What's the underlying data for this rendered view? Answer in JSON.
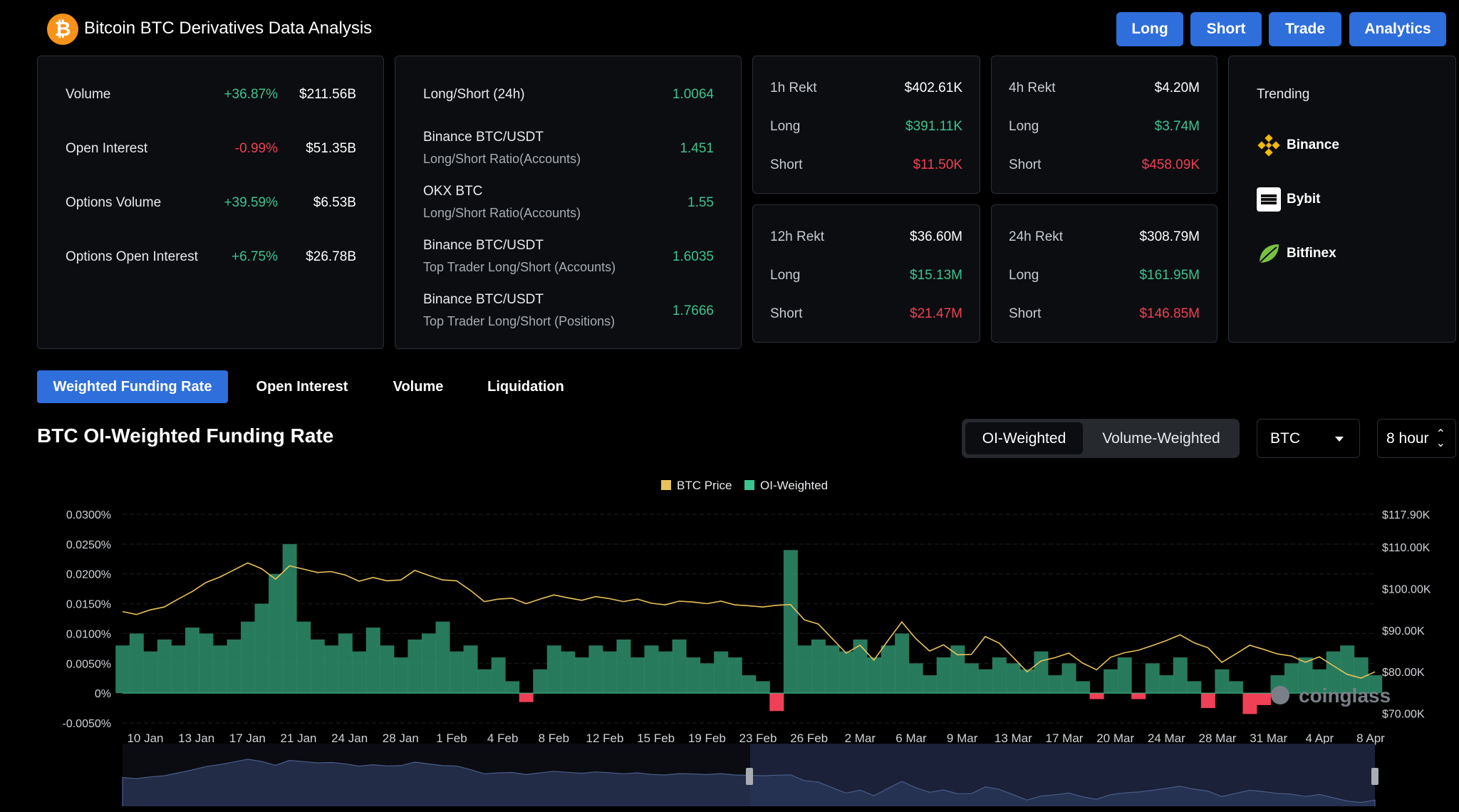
{
  "header": {
    "title": "Bitcoin BTC Derivatives Data Analysis",
    "logo_glyph": "₿",
    "buttons": [
      "Long",
      "Short",
      "Trade",
      "Analytics"
    ]
  },
  "market": [
    {
      "label": "Volume",
      "change": "+36.87%",
      "value": "$211.56B"
    },
    {
      "label": "Open Interest",
      "change": "-0.99%",
      "value": "$51.35B"
    },
    {
      "label": "Options Volume",
      "change": "+39.59%",
      "value": "$6.53B"
    },
    {
      "label": "Options Open Interest",
      "change": "+6.75%",
      "value": "$26.78B"
    }
  ],
  "ratios": [
    {
      "label": "Long/Short (24h)",
      "sub": "",
      "value": "1.0064"
    },
    {
      "label": "Binance BTC/USDT",
      "sub": "Long/Short Ratio(Accounts)",
      "value": "1.451"
    },
    {
      "label": "OKX BTC",
      "sub": "Long/Short Ratio(Accounts)",
      "value": "1.55"
    },
    {
      "label": "Binance BTC/USDT",
      "sub": "Top Trader Long/Short (Accounts)",
      "value": "1.6035"
    },
    {
      "label": "Binance BTC/USDT",
      "sub": "Top Trader Long/Short (Positions)",
      "value": "1.7666"
    }
  ],
  "rekt": [
    {
      "title": "1h Rekt",
      "total": "$402.61K",
      "long_label": "Long",
      "long": "$391.11K",
      "short_label": "Short",
      "short": "$11.50K"
    },
    {
      "title": "4h Rekt",
      "total": "$4.20M",
      "long_label": "Long",
      "long": "$3.74M",
      "short_label": "Short",
      "short": "$458.09K"
    },
    {
      "title": "12h Rekt",
      "total": "$36.60M",
      "long_label": "Long",
      "long": "$15.13M",
      "short_label": "Short",
      "short": "$21.47M"
    },
    {
      "title": "24h Rekt",
      "total": "$308.79M",
      "long_label": "Long",
      "long": "$161.95M",
      "short_label": "Short",
      "short": "$146.85M"
    }
  ],
  "trending": {
    "title": "Trending",
    "items": [
      {
        "name": "Binance",
        "icon": "binance-icon",
        "color": "#f0b90b"
      },
      {
        "name": "Bybit",
        "icon": "bybit-icon",
        "color": "#ffffff"
      },
      {
        "name": "Bitfinex",
        "icon": "bitfinex-icon",
        "color": "#7ac143"
      }
    ]
  },
  "tabs": [
    "Weighted Funding Rate",
    "Open Interest",
    "Volume",
    "Liquidation"
  ],
  "active_tab": 0,
  "section_title": "BTC OI-Weighted Funding Rate",
  "weighting": {
    "options": [
      "OI-Weighted",
      "Volume-Weighted"
    ],
    "selected": "OI-Weighted"
  },
  "coin_select": "BTC",
  "interval_select": "8 hour",
  "colors": {
    "accent": "#2f6fdc",
    "positive": "#3cc48f",
    "negative": "#ef4055",
    "price": "#e8c25a"
  },
  "chart_data": {
    "type": "area",
    "legend": [
      "BTC Price",
      "OI-Weighted"
    ],
    "watermark": "coinglass",
    "y_left_ticks": [
      "0.0300%",
      "0.0250%",
      "0.0200%",
      "0.0150%",
      "0.0100%",
      "0.0050%",
      "0%",
      "-0.0050%"
    ],
    "y_left_range": [
      -0.005,
      0.03
    ],
    "y_right_ticks": [
      "$117.90K",
      "$110.00K",
      "$100.00K",
      "$90.00K",
      "$80.00K",
      "$70.00K"
    ],
    "y_right_range": [
      67700,
      117900
    ],
    "x_ticks": [
      "10 Jan",
      "13 Jan",
      "17 Jan",
      "21 Jan",
      "24 Jan",
      "28 Jan",
      "1 Feb",
      "4 Feb",
      "8 Feb",
      "12 Feb",
      "15 Feb",
      "19 Feb",
      "23 Feb",
      "26 Feb",
      "2 Mar",
      "6 Mar",
      "9 Mar",
      "13 Mar",
      "17 Mar",
      "20 Mar",
      "24 Mar",
      "28 Mar",
      "31 Mar",
      "4 Apr",
      "8 Apr"
    ],
    "series": [
      {
        "name": "OI-Weighted",
        "unit": "%",
        "values": [
          0.008,
          0.01,
          0.007,
          0.009,
          0.008,
          0.011,
          0.01,
          0.008,
          0.009,
          0.012,
          0.015,
          0.02,
          0.025,
          0.012,
          0.009,
          0.008,
          0.01,
          0.007,
          0.011,
          0.008,
          0.006,
          0.009,
          0.01,
          0.012,
          0.007,
          0.008,
          0.004,
          0.006,
          0.002,
          -0.0015,
          0.004,
          0.008,
          0.007,
          0.006,
          0.008,
          0.007,
          0.009,
          0.006,
          0.008,
          0.007,
          0.009,
          0.006,
          0.005,
          0.007,
          0.006,
          0.003,
          0.002,
          -0.003,
          0.024,
          0.008,
          0.009,
          0.008,
          0.007,
          0.009,
          0.006,
          0.008,
          0.01,
          0.005,
          0.003,
          0.006,
          0.008,
          0.005,
          0.004,
          0.006,
          0.005,
          0.004,
          0.007,
          0.003,
          0.005,
          0.002,
          -0.001,
          0.004,
          0.006,
          -0.001,
          0.005,
          0.003,
          0.006,
          0.002,
          -0.0025,
          0.004,
          0.002,
          -0.0035,
          -0.002,
          0.003,
          0.005,
          0.006,
          0.004,
          0.007,
          0.008,
          0.006,
          0.003
        ]
      },
      {
        "name": "BTC Price",
        "unit": "USD",
        "values": [
          94500,
          93800,
          94900,
          95600,
          97500,
          99300,
          101500,
          102800,
          104500,
          106200,
          104800,
          102300,
          105500,
          104700,
          103900,
          104100,
          103300,
          101800,
          102700,
          101900,
          102100,
          104400,
          103200,
          102100,
          101900,
          99600,
          96900,
          97500,
          97700,
          96400,
          97500,
          98500,
          97800,
          97200,
          98100,
          97600,
          96900,
          97500,
          96500,
          96100,
          97000,
          96800,
          96400,
          97000,
          96100,
          95900,
          95600,
          96000,
          96200,
          92500,
          91500,
          88000,
          84500,
          86400,
          82800,
          87500,
          92000,
          88000,
          85000,
          86500,
          84100,
          84200,
          88500,
          86900,
          83500,
          80000,
          82600,
          83400,
          84500,
          82100,
          80500,
          83500,
          84600,
          85200,
          86300,
          87500,
          88900,
          87000,
          85800,
          82300,
          84300,
          86400,
          85400,
          84300,
          83800,
          82300,
          83600,
          81500,
          79400,
          78500,
          80000
        ]
      }
    ]
  }
}
